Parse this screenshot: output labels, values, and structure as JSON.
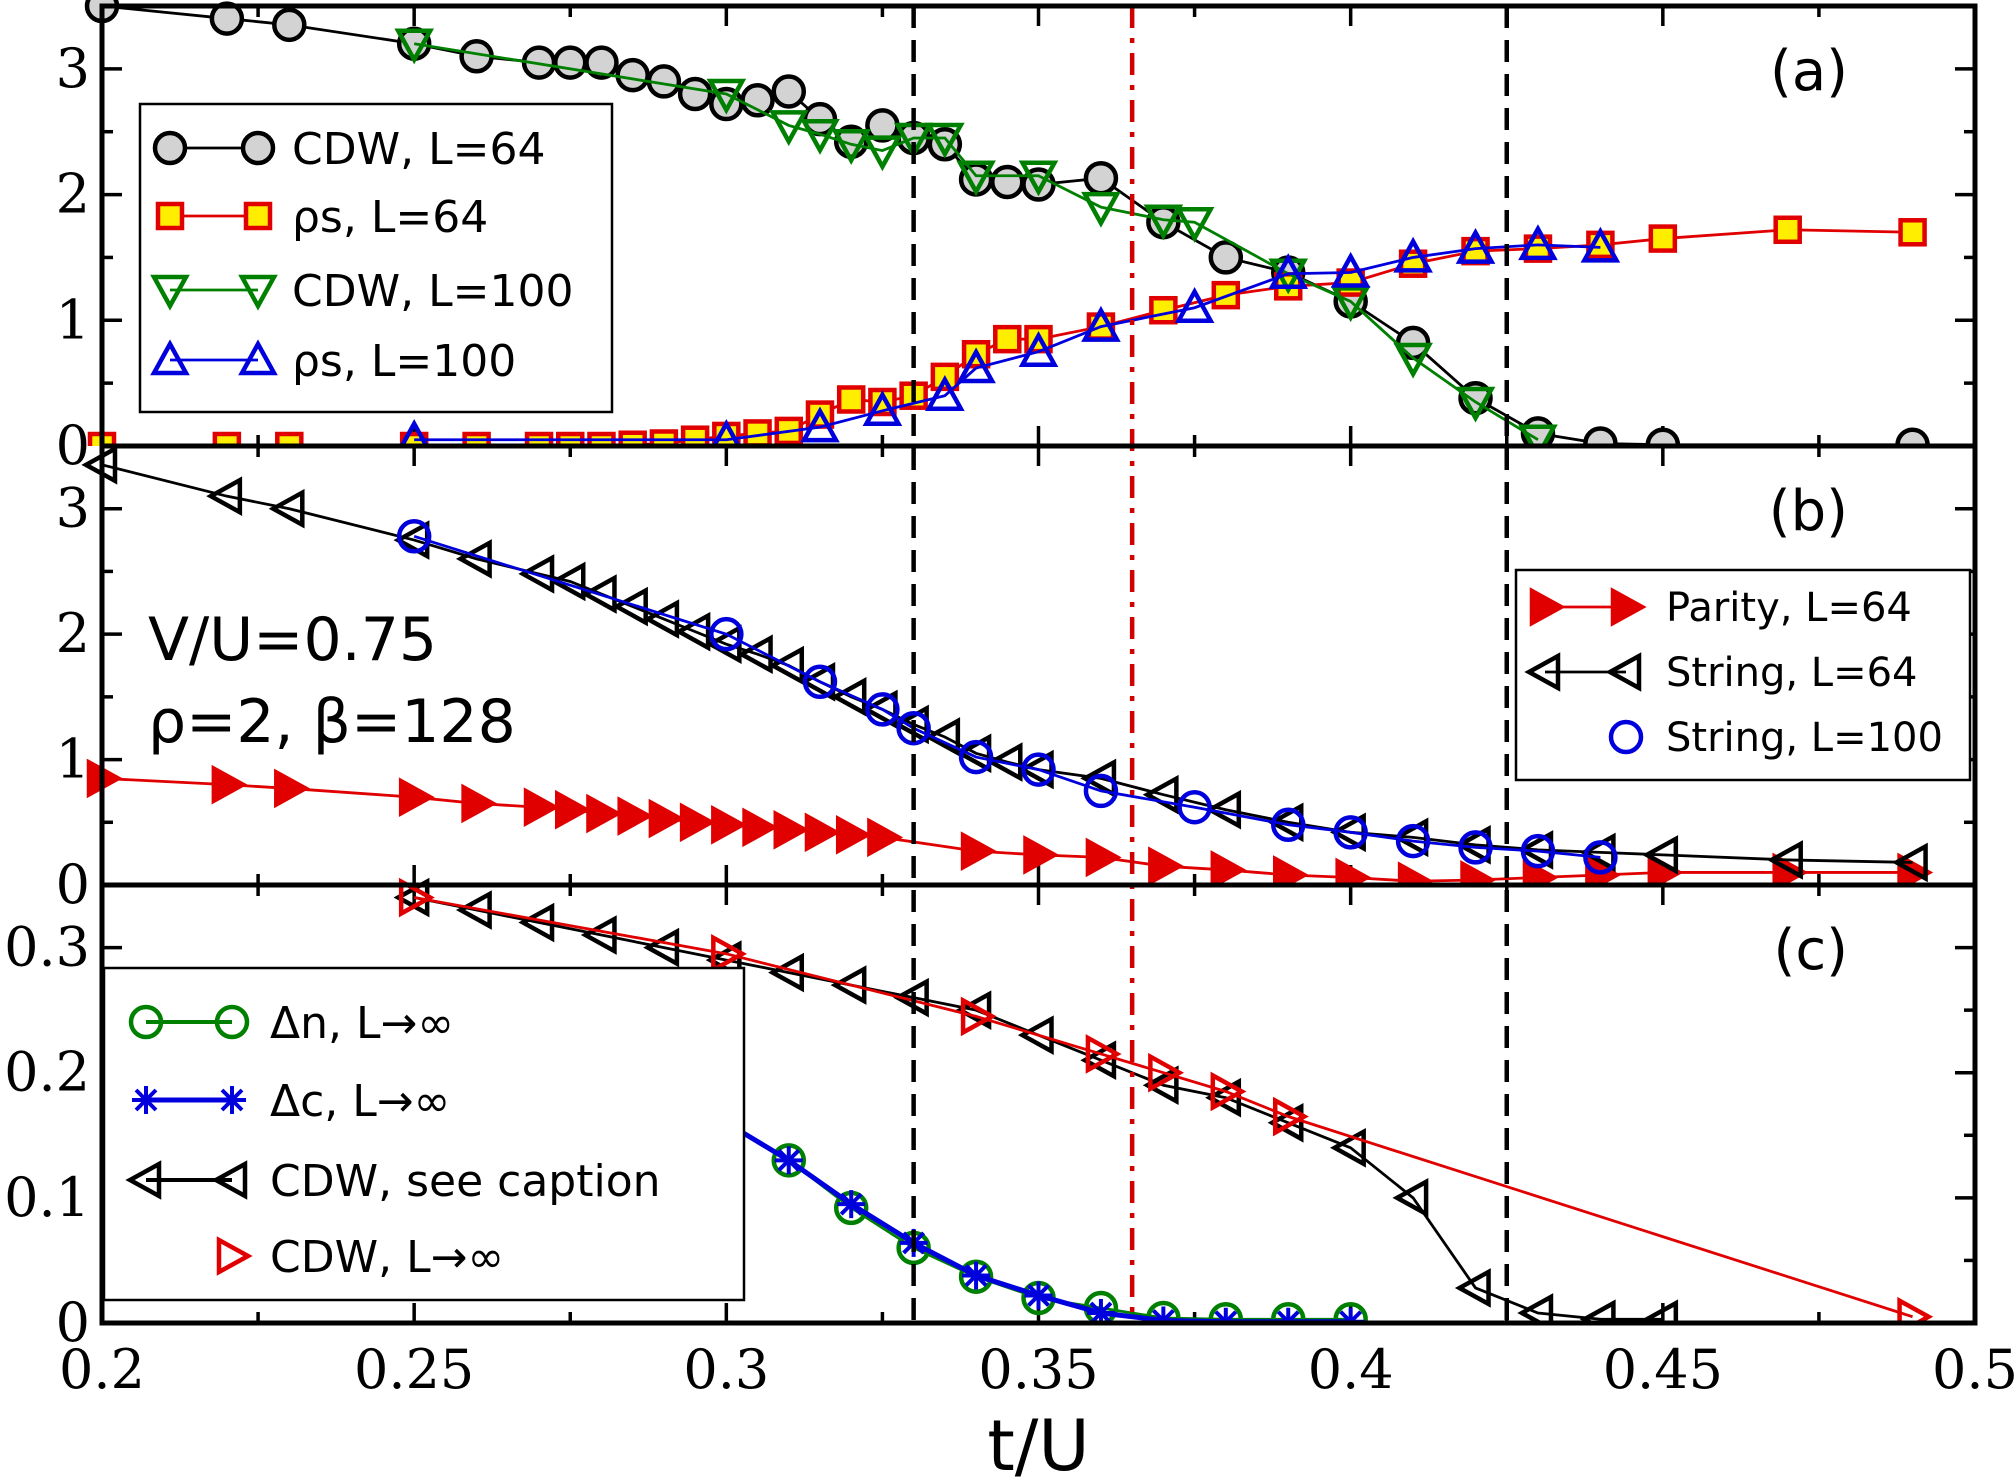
{
  "chart_data": {
    "type": "line",
    "shared_x": {
      "xlabel": "t/U",
      "xlim": [
        0.2,
        0.5
      ],
      "xticks": [
        "0.2",
        "0.25",
        "0.3",
        "0.35",
        "0.4",
        "0.45",
        "0.5"
      ],
      "vlines": [
        {
          "x": 0.33,
          "style": "dashed",
          "color": "#000000"
        },
        {
          "x": 0.365,
          "style": "dashdot",
          "color": "#d00000"
        },
        {
          "x": 0.425,
          "style": "dashed",
          "color": "#000000"
        }
      ]
    },
    "panels": [
      {
        "id": "a",
        "label": "(a)",
        "ylim": [
          0,
          3.5
        ],
        "yticks": [
          "0",
          "1",
          "2",
          "3"
        ],
        "legend_placement": "upper-left",
        "series": [
          {
            "name": "CDW, L=64",
            "color": "#000000",
            "fill": "#d3d3d3",
            "marker": "circle",
            "x": [
              0.2,
              0.22,
              0.23,
              0.25,
              0.26,
              0.27,
              0.275,
              0.28,
              0.285,
              0.29,
              0.295,
              0.3,
              0.305,
              0.31,
              0.315,
              0.32,
              0.325,
              0.33,
              0.335,
              0.34,
              0.345,
              0.35,
              0.36,
              0.37,
              0.38,
              0.39,
              0.4,
              0.41,
              0.42,
              0.43,
              0.44,
              0.45,
              0.49
            ],
            "y": [
              3.5,
              3.4,
              3.35,
              3.2,
              3.1,
              3.05,
              3.05,
              3.05,
              2.95,
              2.9,
              2.8,
              2.72,
              2.75,
              2.82,
              2.6,
              2.42,
              2.55,
              2.45,
              2.4,
              2.12,
              2.1,
              2.08,
              2.13,
              1.78,
              1.5,
              1.38,
              1.15,
              0.82,
              0.38,
              0.1,
              0.02,
              0.01,
              0.01
            ]
          },
          {
            "name": "ρs, L=64",
            "color": "#e00000",
            "fill": "#ffee00",
            "marker": "square",
            "x": [
              0.2,
              0.22,
              0.23,
              0.25,
              0.26,
              0.27,
              0.275,
              0.28,
              0.285,
              0.29,
              0.295,
              0.3,
              0.305,
              0.31,
              0.315,
              0.32,
              0.325,
              0.33,
              0.335,
              0.34,
              0.345,
              0.35,
              0.36,
              0.37,
              0.38,
              0.39,
              0.4,
              0.41,
              0.42,
              0.43,
              0.44,
              0.45,
              0.47,
              0.49
            ],
            "y": [
              0.0,
              0.0,
              0.0,
              0.0,
              0.0,
              0.0,
              0.0,
              0.0,
              0.01,
              0.02,
              0.05,
              0.08,
              0.1,
              0.12,
              0.25,
              0.37,
              0.35,
              0.4,
              0.55,
              0.73,
              0.85,
              0.85,
              0.95,
              1.08,
              1.2,
              1.27,
              1.3,
              1.45,
              1.55,
              1.57,
              1.6,
              1.65,
              1.72,
              1.7
            ]
          },
          {
            "name": "CDW, L=100",
            "color": "#008000",
            "fill": "none",
            "marker": "triangle-down",
            "x": [
              0.25,
              0.3,
              0.31,
              0.315,
              0.32,
              0.325,
              0.33,
              0.335,
              0.34,
              0.35,
              0.36,
              0.37,
              0.375,
              0.39,
              0.4,
              0.41,
              0.42,
              0.43
            ],
            "y": [
              3.2,
              2.8,
              2.55,
              2.48,
              2.4,
              2.35,
              2.45,
              2.45,
              2.15,
              2.15,
              1.9,
              1.8,
              1.78,
              1.37,
              1.15,
              0.7,
              0.35,
              0.05
            ]
          },
          {
            "name": "ρs, L=100",
            "color": "#0000dd",
            "fill": "none",
            "marker": "triangle-up",
            "x": [
              0.25,
              0.3,
              0.315,
              0.325,
              0.335,
              0.34,
              0.35,
              0.36,
              0.375,
              0.39,
              0.4,
              0.41,
              0.42,
              0.43,
              0.44
            ],
            "y": [
              0.05,
              0.05,
              0.15,
              0.28,
              0.4,
              0.62,
              0.75,
              0.95,
              1.1,
              1.37,
              1.38,
              1.5,
              1.57,
              1.6,
              1.58
            ]
          }
        ]
      },
      {
        "id": "b",
        "label": "(b)",
        "ylim": [
          0,
          3.5
        ],
        "yticks": [
          "0",
          "1",
          "2",
          "3"
        ],
        "legend_placement": "right",
        "annotation": [
          "V/U=0.75",
          "ρ=2, β=128"
        ],
        "series": [
          {
            "name": "Parity, L=64",
            "color": "#e00000",
            "fill": "#e00000",
            "marker": "triangle-right",
            "x": [
              0.2,
              0.22,
              0.23,
              0.25,
              0.26,
              0.27,
              0.275,
              0.28,
              0.285,
              0.29,
              0.295,
              0.3,
              0.305,
              0.31,
              0.315,
              0.32,
              0.325,
              0.34,
              0.35,
              0.36,
              0.37,
              0.38,
              0.39,
              0.4,
              0.41,
              0.42,
              0.43,
              0.44,
              0.45,
              0.47,
              0.49
            ],
            "y": [
              0.85,
              0.8,
              0.77,
              0.7,
              0.65,
              0.62,
              0.6,
              0.57,
              0.55,
              0.53,
              0.5,
              0.48,
              0.46,
              0.44,
              0.42,
              0.4,
              0.38,
              0.27,
              0.24,
              0.22,
              0.15,
              0.12,
              0.08,
              0.06,
              0.03,
              0.04,
              0.06,
              0.08,
              0.1,
              0.1,
              0.1
            ]
          },
          {
            "name": "String, L=64",
            "color": "#000000",
            "fill": "none",
            "marker": "triangle-left",
            "x": [
              0.2,
              0.22,
              0.23,
              0.25,
              0.26,
              0.27,
              0.275,
              0.28,
              0.285,
              0.29,
              0.295,
              0.3,
              0.305,
              0.31,
              0.315,
              0.32,
              0.325,
              0.33,
              0.335,
              0.34,
              0.345,
              0.35,
              0.36,
              0.37,
              0.38,
              0.39,
              0.4,
              0.41,
              0.42,
              0.43,
              0.44,
              0.45,
              0.47,
              0.49
            ],
            "y": [
              3.35,
              3.1,
              3.0,
              2.75,
              2.6,
              2.48,
              2.42,
              2.32,
              2.22,
              2.12,
              2.02,
              1.92,
              1.84,
              1.75,
              1.62,
              1.5,
              1.4,
              1.28,
              1.18,
              1.05,
              0.98,
              0.92,
              0.85,
              0.72,
              0.6,
              0.5,
              0.42,
              0.38,
              0.32,
              0.28,
              0.26,
              0.24,
              0.2,
              0.18
            ]
          },
          {
            "name": "String, L=100",
            "color": "#0000dd",
            "fill": "none",
            "marker": "circle",
            "x": [
              0.25,
              0.3,
              0.315,
              0.325,
              0.33,
              0.34,
              0.35,
              0.36,
              0.375,
              0.39,
              0.4,
              0.41,
              0.42,
              0.43,
              0.44
            ],
            "y": [
              2.78,
              2.0,
              1.62,
              1.4,
              1.25,
              1.02,
              0.92,
              0.75,
              0.62,
              0.48,
              0.42,
              0.35,
              0.3,
              0.27,
              0.22
            ]
          }
        ]
      },
      {
        "id": "c",
        "label": "(c)",
        "ylim": [
          0,
          0.35
        ],
        "yticks": [
          "0",
          "0.1",
          "0.2",
          "0.3"
        ],
        "legend_placement": "lower-left",
        "series": [
          {
            "name": "Δn, L→∞",
            "color": "#008000",
            "fill": "none",
            "marker": "circle",
            "x": [
              0.3,
              0.31,
              0.32,
              0.33,
              0.34,
              0.35,
              0.36,
              0.37,
              0.38,
              0.39,
              0.4
            ],
            "y": [
              0.16,
              0.13,
              0.092,
              0.06,
              0.037,
              0.02,
              0.012,
              0.004,
              0.003,
              0.003,
              0.003
            ]
          },
          {
            "name": "Δc, L→∞",
            "color": "#0000dd",
            "fill": "none",
            "marker": "asterisk",
            "x": [
              0.3,
              0.31,
              0.32,
              0.33,
              0.34,
              0.35,
              0.36,
              0.37,
              0.38,
              0.39,
              0.4
            ],
            "y": [
              0.16,
              0.13,
              0.095,
              0.064,
              0.038,
              0.022,
              0.008,
              0.002,
              0.001,
              0.001,
              0.001
            ]
          },
          {
            "name": "CDW, see caption",
            "color": "#000000",
            "fill": "none",
            "marker": "triangle-left",
            "x": [
              0.25,
              0.26,
              0.27,
              0.28,
              0.29,
              0.3,
              0.31,
              0.32,
              0.33,
              0.34,
              0.35,
              0.36,
              0.37,
              0.38,
              0.39,
              0.4,
              0.41,
              0.42,
              0.43,
              0.44,
              0.45
            ],
            "y": [
              0.34,
              0.33,
              0.32,
              0.31,
              0.3,
              0.29,
              0.28,
              0.27,
              0.26,
              0.25,
              0.23,
              0.21,
              0.19,
              0.18,
              0.16,
              0.14,
              0.1,
              0.028,
              0.008,
              0.003,
              0.003
            ]
          },
          {
            "name": "CDW, L→∞",
            "color": "#e00000",
            "fill": "none",
            "marker": "triangle-right",
            "x": [
              0.25,
              0.3,
              0.34,
              0.36,
              0.37,
              0.38,
              0.39,
              0.49
            ],
            "y": [
              0.34,
              0.295,
              0.245,
              0.215,
              0.2,
              0.185,
              0.165,
              0.005
            ]
          }
        ]
      }
    ]
  }
}
